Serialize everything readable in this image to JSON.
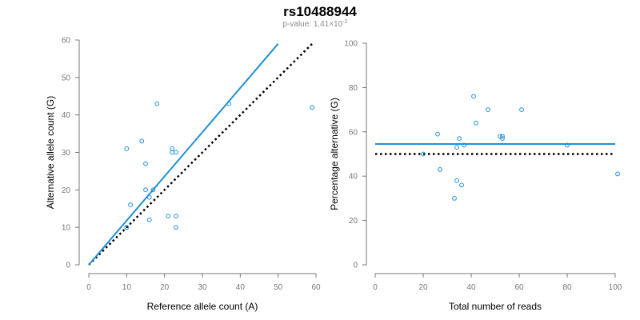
{
  "title": "rs10488944",
  "subtitle_prefix": "p-value: 1.41",
  "subtitle_times": "×",
  "subtitle_base": "10",
  "subtitle_exp": "-2",
  "colors": {
    "point": "#1f8fd6",
    "fit": "#1f8fd6",
    "reference": "#000000",
    "axis": "#777777"
  },
  "chart_data": [
    {
      "type": "scatter",
      "xlabel": "Reference allele count (A)",
      "ylabel": "Alternative allele count (G)",
      "xlim": [
        0,
        60
      ],
      "ylim": [
        0,
        60
      ],
      "xticks": [
        0,
        10,
        20,
        30,
        40,
        50,
        60
      ],
      "yticks": [
        0,
        10,
        20,
        30,
        40,
        50,
        60
      ],
      "points": [
        {
          "x": 10,
          "y": 31
        },
        {
          "x": 10,
          "y": 10
        },
        {
          "x": 11,
          "y": 16
        },
        {
          "x": 14,
          "y": 33
        },
        {
          "x": 15,
          "y": 27
        },
        {
          "x": 15,
          "y": 20
        },
        {
          "x": 16,
          "y": 18
        },
        {
          "x": 16,
          "y": 12
        },
        {
          "x": 17,
          "y": 20
        },
        {
          "x": 18,
          "y": 43
        },
        {
          "x": 21,
          "y": 13
        },
        {
          "x": 22,
          "y": 31
        },
        {
          "x": 22,
          "y": 30
        },
        {
          "x": 23,
          "y": 30
        },
        {
          "x": 23,
          "y": 13
        },
        {
          "x": 23,
          "y": 10
        },
        {
          "x": 37,
          "y": 43
        },
        {
          "x": 59,
          "y": 42
        }
      ],
      "fit_line": {
        "x": [
          0,
          50
        ],
        "y": [
          0,
          59
        ]
      },
      "reference_line": {
        "x": [
          0,
          59
        ],
        "y": [
          0,
          59
        ]
      }
    },
    {
      "type": "scatter",
      "xlabel": "Total number of reads",
      "ylabel": "Percentage alternative (G)",
      "xlim": [
        0,
        100
      ],
      "ylim": [
        0,
        100
      ],
      "xticks": [
        0,
        20,
        40,
        60,
        80,
        100
      ],
      "yticks": [
        0,
        20,
        40,
        60,
        80,
        100
      ],
      "points": [
        {
          "x": 20,
          "y": 50
        },
        {
          "x": 26,
          "y": 59
        },
        {
          "x": 27,
          "y": 43
        },
        {
          "x": 33,
          "y": 30
        },
        {
          "x": 34,
          "y": 53
        },
        {
          "x": 34,
          "y": 38
        },
        {
          "x": 35,
          "y": 57
        },
        {
          "x": 36,
          "y": 36
        },
        {
          "x": 37,
          "y": 54
        },
        {
          "x": 41,
          "y": 76
        },
        {
          "x": 42,
          "y": 64
        },
        {
          "x": 47,
          "y": 70
        },
        {
          "x": 52,
          "y": 58
        },
        {
          "x": 53,
          "y": 57
        },
        {
          "x": 53,
          "y": 58
        },
        {
          "x": 61,
          "y": 70
        },
        {
          "x": 80,
          "y": 54
        },
        {
          "x": 101,
          "y": 41
        }
      ],
      "fit_line": {
        "x": [
          0,
          100
        ],
        "y": [
          54.5,
          54.5
        ]
      },
      "reference_line": {
        "x": [
          0,
          100
        ],
        "y": [
          50,
          50
        ]
      }
    }
  ]
}
